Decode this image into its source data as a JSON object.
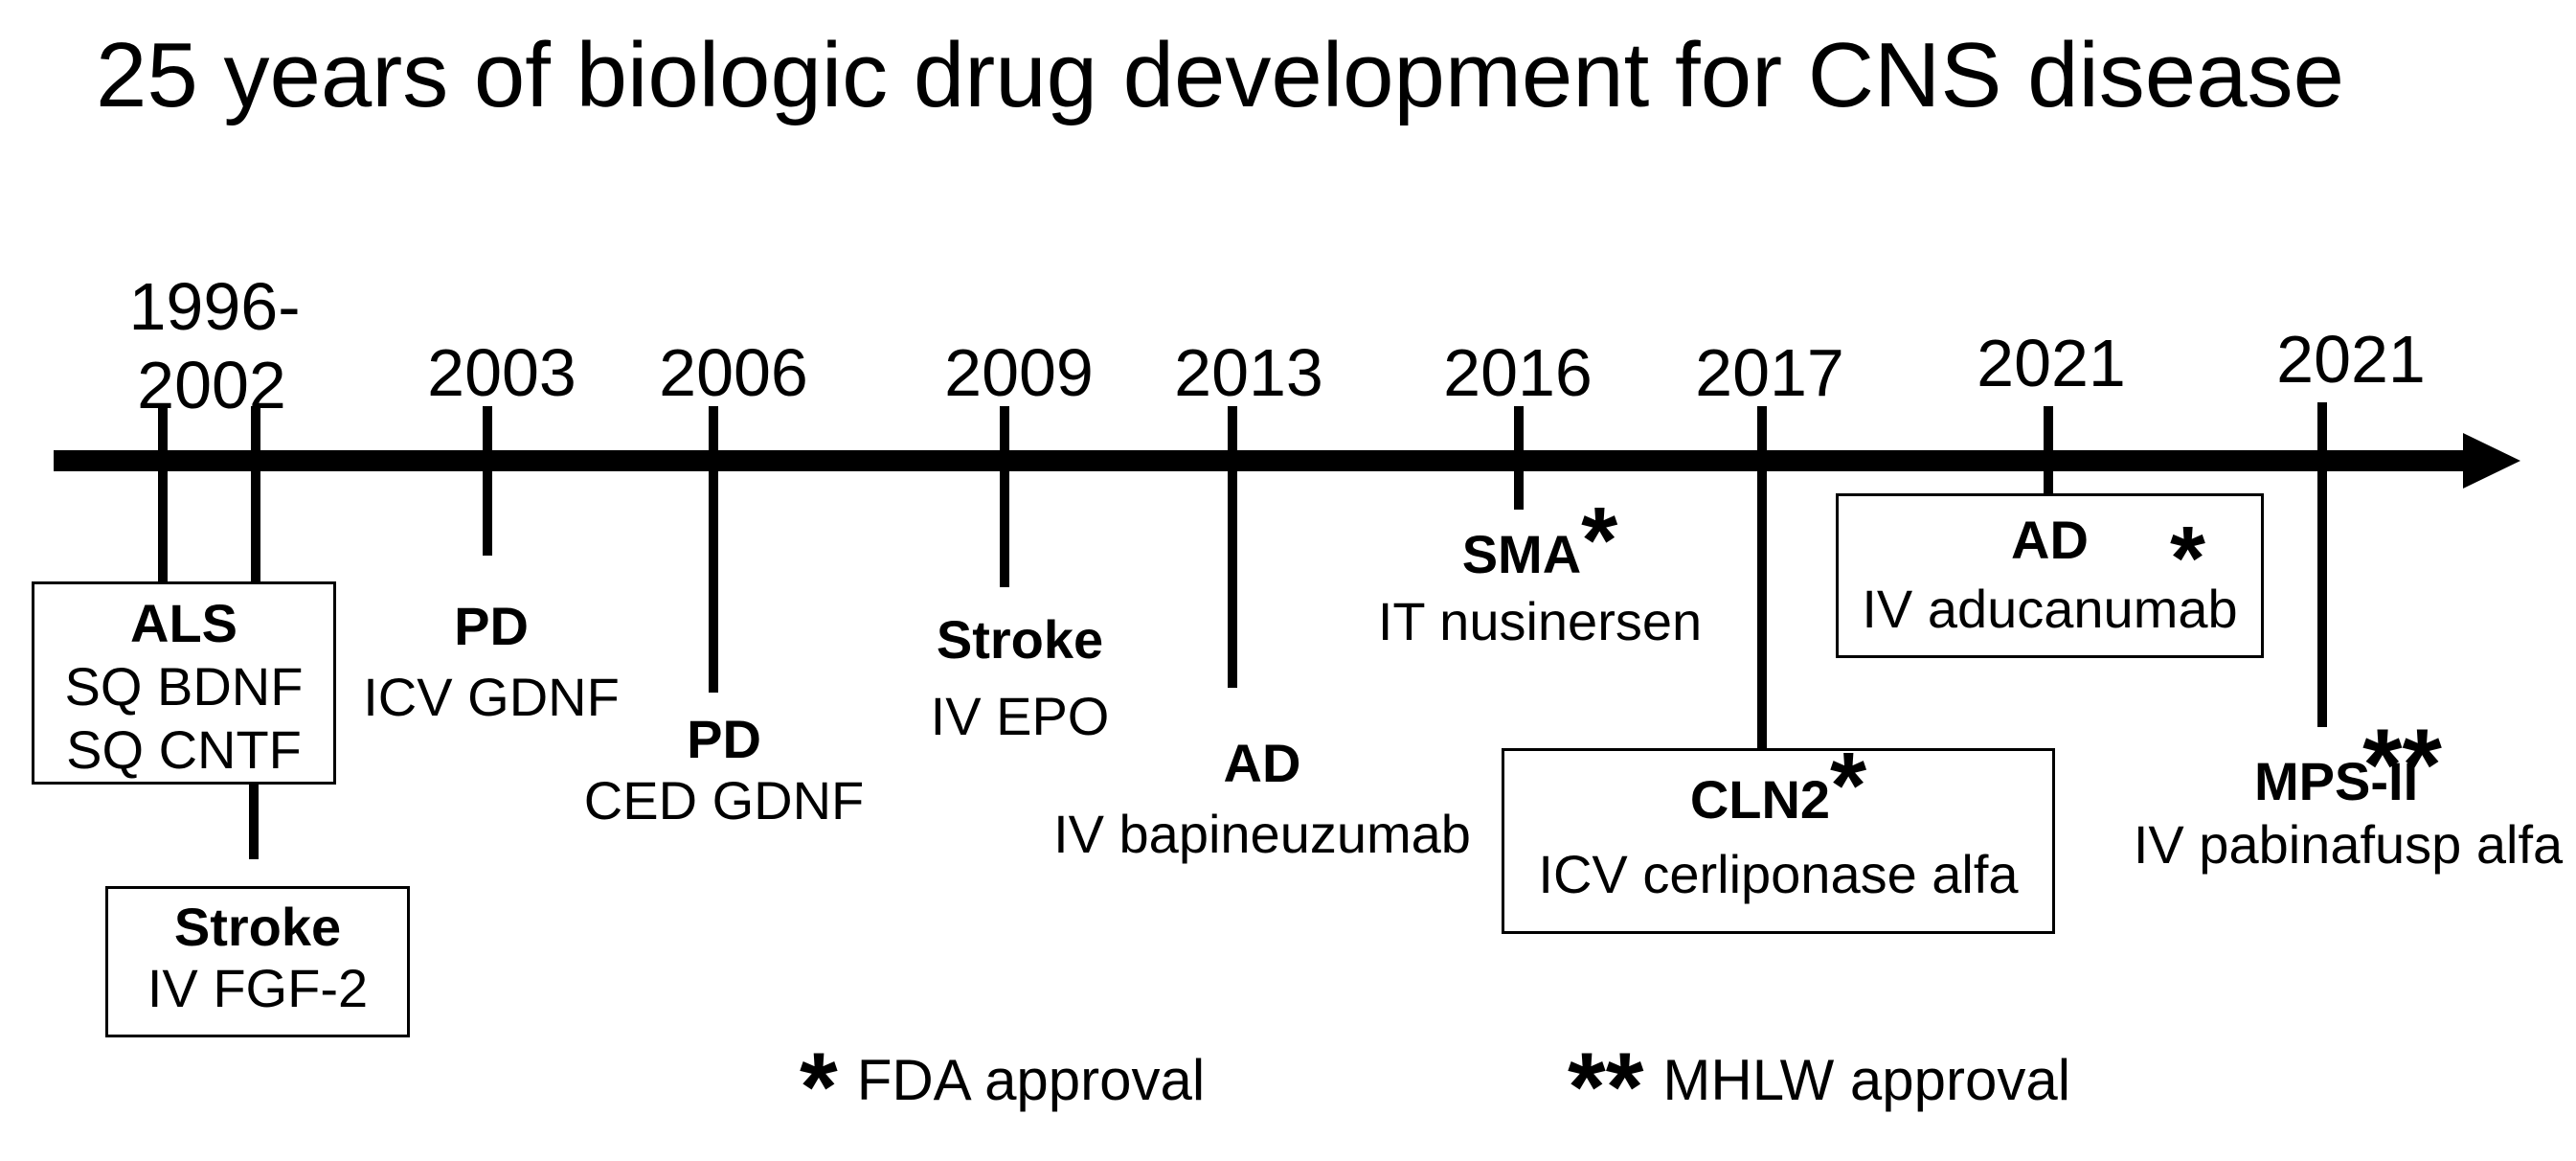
{
  "title": "25 years of biologic drug development for CNS disease",
  "timeline": {
    "years": [
      {
        "label": "1996-"
      },
      {
        "label": "2002"
      },
      {
        "label": "2003"
      },
      {
        "label": "2006"
      },
      {
        "label": "2009"
      },
      {
        "label": "2013"
      },
      {
        "label": "2016"
      },
      {
        "label": "2017"
      },
      {
        "label": "2021"
      },
      {
        "label": "2021"
      }
    ]
  },
  "events": [
    {
      "year": "1996-2002",
      "condition": "ALS",
      "routes": [
        "SQ BDNF",
        "SQ CNTF"
      ],
      "boxed": true,
      "approval_mark": ""
    },
    {
      "year": "1996-2002",
      "condition": "Stroke",
      "routes": [
        "IV FGF-2"
      ],
      "boxed": true,
      "approval_mark": ""
    },
    {
      "year": "2003",
      "condition": "PD",
      "routes": [
        "ICV GDNF"
      ],
      "boxed": false,
      "approval_mark": ""
    },
    {
      "year": "2006",
      "condition": "PD",
      "routes": [
        "CED GDNF"
      ],
      "boxed": false,
      "approval_mark": ""
    },
    {
      "year": "2009",
      "condition": "Stroke",
      "routes": [
        "IV EPO"
      ],
      "boxed": false,
      "approval_mark": ""
    },
    {
      "year": "2013",
      "condition": "AD",
      "routes": [
        "IV bapineuzumab"
      ],
      "boxed": false,
      "approval_mark": ""
    },
    {
      "year": "2016",
      "condition": "SMA",
      "routes": [
        "IT nusinersen"
      ],
      "boxed": false,
      "approval_mark": "*"
    },
    {
      "year": "2017",
      "condition": "CLN2",
      "routes": [
        "ICV cerliponase alfa"
      ],
      "boxed": true,
      "approval_mark": "*"
    },
    {
      "year": "2021",
      "condition": "AD",
      "routes": [
        "IV aducanumab"
      ],
      "boxed": true,
      "approval_mark": "*"
    },
    {
      "year": "2021",
      "condition": "MPS-II",
      "routes": [
        "IV pabinafusp alfa"
      ],
      "boxed": false,
      "approval_mark": "**"
    }
  ],
  "legend": [
    {
      "symbol": "*",
      "label": "FDA approval"
    },
    {
      "symbol": "**",
      "label": "MHLW approval"
    }
  ],
  "colors": {
    "foreground": "#000000",
    "background": "#ffffff"
  }
}
